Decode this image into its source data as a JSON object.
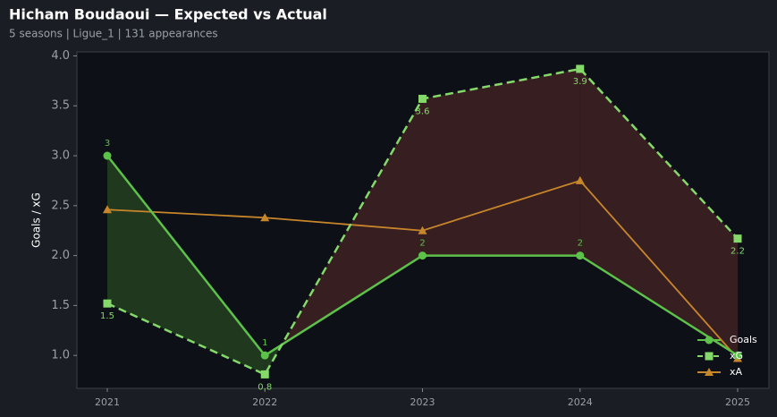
{
  "chart_data": {
    "type": "line",
    "title": "Hicham Boudaoui — Expected vs Actual",
    "subtitle": "5 seasons | Ligue_1 | 131 appearances",
    "y_label": "Goals / xG",
    "categories": [
      "2021",
      "2022",
      "2023",
      "2024",
      "2025"
    ],
    "series": [
      {
        "name": "Goals",
        "color": "#5cc24a",
        "marker": "circle",
        "dash": false,
        "values": [
          3,
          1,
          2,
          2,
          1
        ],
        "value_labels": [
          "3",
          "1",
          "2",
          "2",
          null
        ]
      },
      {
        "name": "xG",
        "color": "#84d96a",
        "marker": "square",
        "dash": true,
        "values": [
          1.52,
          0.81,
          3.57,
          3.87,
          2.17
        ],
        "value_labels": [
          "1.5",
          "0.8",
          "3.6",
          "3.9",
          "2.2"
        ]
      },
      {
        "name": "xA",
        "color": "#c8862a",
        "marker": "triangle",
        "dash": false,
        "values": [
          2.46,
          2.38,
          2.25,
          2.75,
          0.97
        ]
      }
    ],
    "ylim": [
      0.67,
      4.04
    ],
    "yticks": [
      {
        "value": 1,
        "label": "1.0"
      },
      {
        "value": 1.5,
        "label": "1.5"
      },
      {
        "value": 2,
        "label": "2.0"
      },
      {
        "value": 2.5,
        "label": "2.5"
      },
      {
        "value": 3,
        "label": "3.0"
      },
      {
        "value": 3.5,
        "label": "3.5"
      },
      {
        "value": 4,
        "label": "4.0"
      }
    ],
    "legend": "lower right",
    "fill_colors": {
      "above": "#2f5a24",
      "below": "#5a2a2a"
    }
  }
}
